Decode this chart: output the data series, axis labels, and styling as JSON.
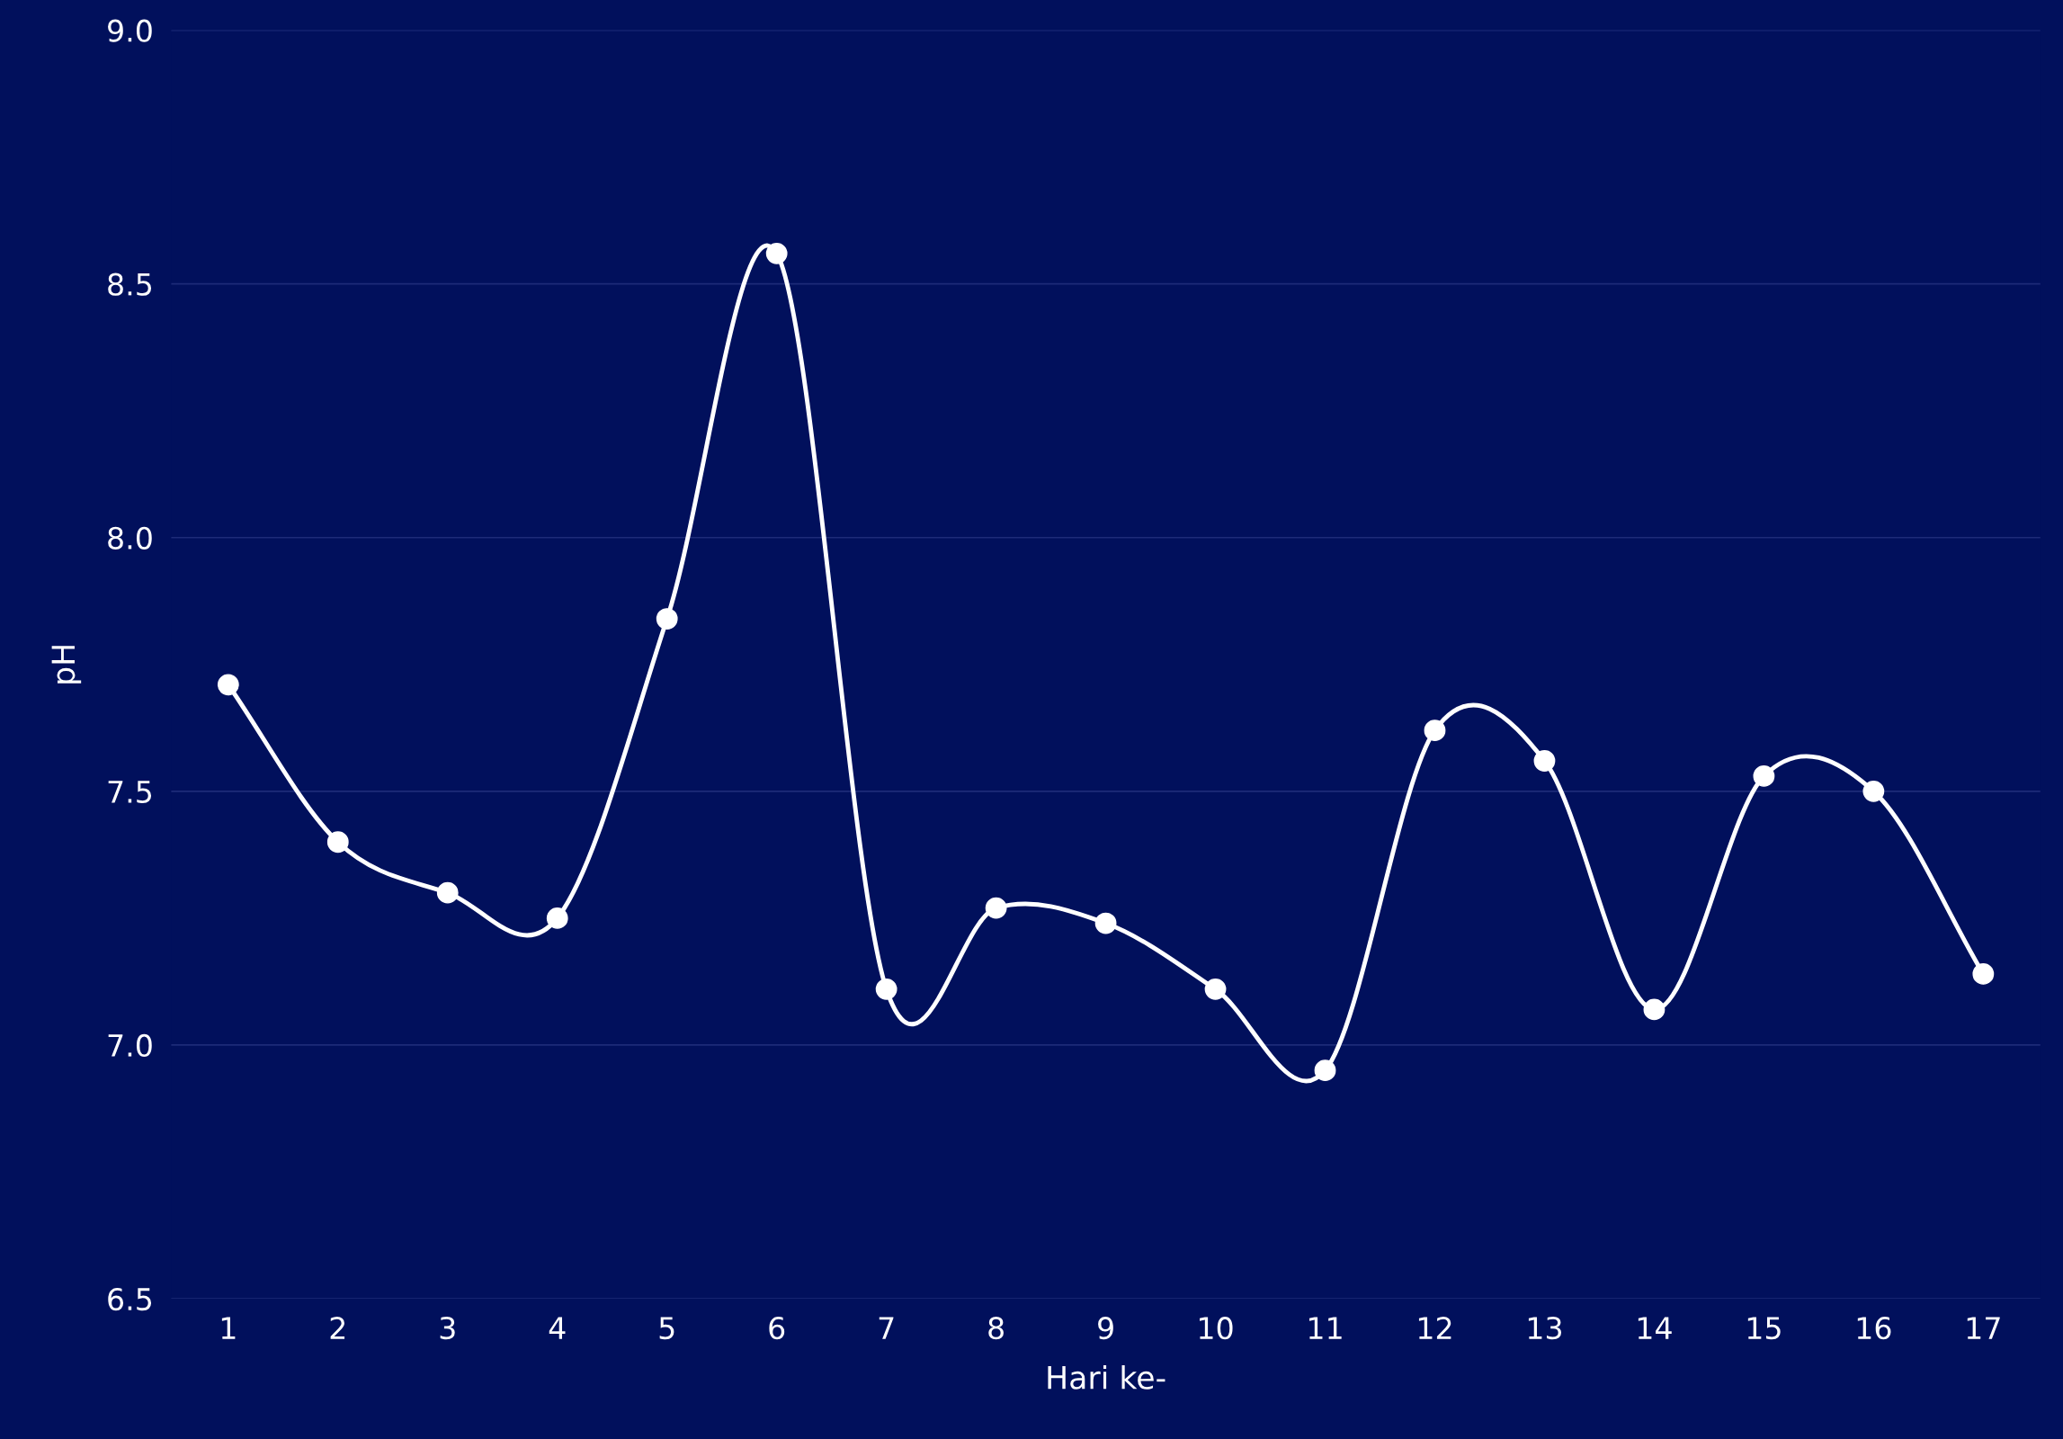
{
  "chart_data": {
    "type": "line",
    "xlabel": "Hari ke-",
    "ylabel": "pH",
    "categories": [
      "1",
      "2",
      "3",
      "4",
      "5",
      "6",
      "7",
      "8",
      "9",
      "10",
      "11",
      "12",
      "13",
      "14",
      "15",
      "16",
      "17"
    ],
    "series": [
      {
        "color": "#ffffff",
        "values": [
          7.71,
          7.4,
          7.3,
          7.25,
          7.84,
          8.56,
          7.11,
          7.27,
          7.24,
          7.11,
          6.95,
          7.62,
          7.56,
          7.07,
          7.53,
          7.5,
          7.14
        ]
      }
    ],
    "ylim": [
      6.5,
      9.0
    ],
    "yticks": [
      6.5,
      {
        "value": 7,
        "label": "7.0"
      },
      7.5,
      {
        "value": 8,
        "label": "8.0"
      },
      8.5,
      {
        "value": 9,
        "label": "9.0"
      }
    ],
    "grid": "y",
    "marker": "circle",
    "line_style": "solid"
  }
}
